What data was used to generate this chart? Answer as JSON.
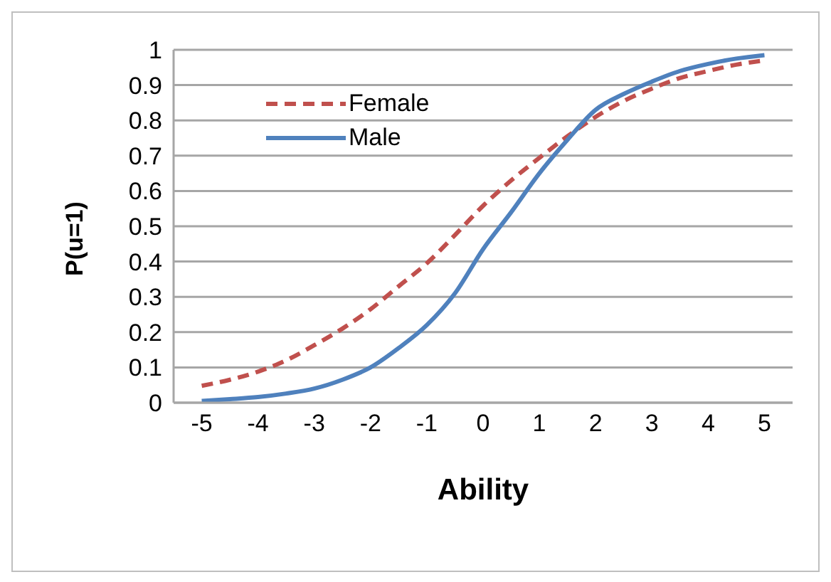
{
  "chart_data": {
    "type": "line",
    "xlabel": "Ability",
    "ylabel": "P(u=1)",
    "x": [
      -5,
      -4.5,
      -4,
      -3.5,
      -3,
      -2.5,
      -2,
      -1.5,
      -1,
      -0.5,
      0,
      0.5,
      1,
      1.5,
      2,
      2.5,
      3,
      3.5,
      4,
      4.5,
      5
    ],
    "series": [
      {
        "name": "Female",
        "color": "#c0504d",
        "line_style": "dashed",
        "values": [
          0.048,
          0.065,
          0.088,
          0.12,
          0.163,
          0.21,
          0.265,
          0.33,
          0.395,
          0.475,
          0.558,
          0.63,
          0.694,
          0.755,
          0.81,
          0.855,
          0.89,
          0.92,
          0.94,
          0.958,
          0.97
        ]
      },
      {
        "name": "Male",
        "color": "#4f81bd",
        "line_style": "solid",
        "values": [
          0.005,
          0.01,
          0.016,
          0.026,
          0.04,
          0.065,
          0.1,
          0.155,
          0.22,
          0.31,
          0.435,
          0.54,
          0.65,
          0.745,
          0.83,
          0.875,
          0.91,
          0.94,
          0.96,
          0.975,
          0.985
        ]
      }
    ],
    "xlim": [
      -5.5,
      5.5
    ],
    "xticks": [
      -5,
      -4,
      -3,
      -2,
      -1,
      0,
      1,
      2,
      3,
      4,
      5
    ],
    "ylim": [
      0,
      1
    ],
    "yticks": [
      0,
      0.1,
      0.2,
      0.3,
      0.4,
      0.5,
      0.6,
      0.7,
      0.8,
      0.9,
      1
    ],
    "grid": "y",
    "legend": "top left",
    "marker": "none"
  }
}
